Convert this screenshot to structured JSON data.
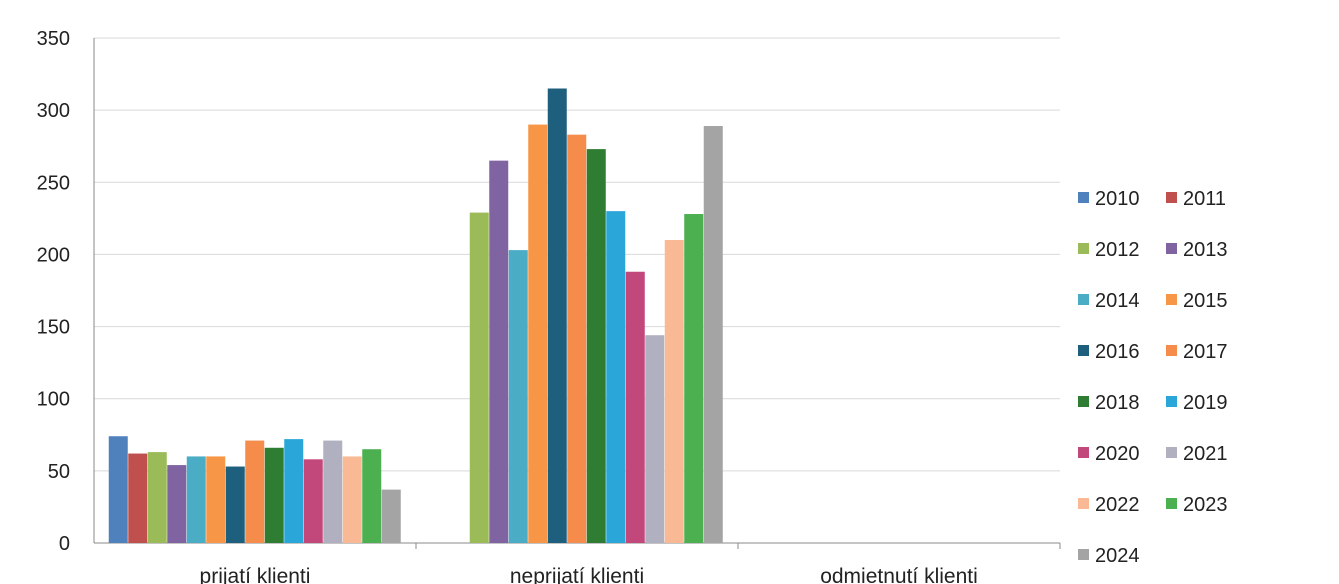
{
  "chart_data": {
    "type": "bar",
    "categories": [
      "prijatí klienti",
      "neprijatí klienti",
      "odmietnutí klienti"
    ],
    "series": [
      {
        "name": "2010",
        "color": "#4f81bd",
        "values": [
          74,
          0,
          0
        ]
      },
      {
        "name": "2011",
        "color": "#c0504d",
        "values": [
          62,
          0,
          0
        ]
      },
      {
        "name": "2012",
        "color": "#9bbb59",
        "values": [
          63,
          229,
          0
        ]
      },
      {
        "name": "2013",
        "color": "#8064a2",
        "values": [
          54,
          265,
          0
        ]
      },
      {
        "name": "2014",
        "color": "#4bacc6",
        "values": [
          60,
          203,
          0
        ]
      },
      {
        "name": "2015",
        "color": "#f79646",
        "values": [
          60,
          290,
          0
        ]
      },
      {
        "name": "2016",
        "color": "#1f5f7e",
        "values": [
          53,
          315,
          0
        ]
      },
      {
        "name": "2017",
        "color": "#f58c4b",
        "values": [
          71,
          283,
          0
        ]
      },
      {
        "name": "2018",
        "color": "#2e7d32",
        "values": [
          66,
          273,
          0
        ]
      },
      {
        "name": "2019",
        "color": "#2aa6d9",
        "values": [
          72,
          230,
          0
        ]
      },
      {
        "name": "2020",
        "color": "#c2477a",
        "values": [
          58,
          188,
          0
        ]
      },
      {
        "name": "2021",
        "color": "#b0b0c0",
        "values": [
          71,
          144,
          0
        ]
      },
      {
        "name": "2022",
        "color": "#f9b995",
        "values": [
          60,
          210,
          0
        ]
      },
      {
        "name": "2023",
        "color": "#4caf50",
        "values": [
          65,
          228,
          0
        ]
      },
      {
        "name": "2024",
        "color": "#a4a4a4",
        "values": [
          37,
          289,
          0
        ]
      }
    ],
    "xlabel": "",
    "ylabel": "",
    "ylim": [
      0,
      350
    ],
    "yticks": [
      0,
      50,
      100,
      150,
      200,
      250,
      300,
      350
    ],
    "grid": true,
    "legend": "right"
  }
}
